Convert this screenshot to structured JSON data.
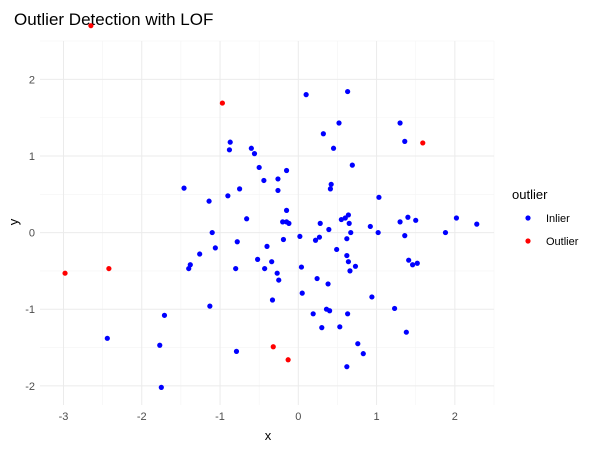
{
  "chart_data": {
    "type": "scatter",
    "title": "Outlier Detection with LOF",
    "xlabel": "x",
    "ylabel": "y",
    "xlim": [
      -3.3,
      2.5
    ],
    "ylim": [
      -2.25,
      2.5
    ],
    "xticks": [
      -3,
      -2,
      -1,
      0,
      1,
      2
    ],
    "yticks": [
      -2,
      -1,
      0,
      1,
      2
    ],
    "grid": true,
    "legend": {
      "title": "outlier",
      "position": "right"
    },
    "series": [
      {
        "name": "Inlier",
        "color": "#0000ff",
        "points": [
          [
            0.1,
            1.8
          ],
          [
            0.63,
            1.84
          ],
          [
            0.52,
            1.43
          ],
          [
            1.3,
            1.43
          ],
          [
            0.32,
            1.29
          ],
          [
            1.36,
            1.19
          ],
          [
            -0.87,
            1.18
          ],
          [
            -0.88,
            1.08
          ],
          [
            -0.6,
            1.1
          ],
          [
            -0.56,
            1.03
          ],
          [
            0.45,
            1.1
          ],
          [
            -0.5,
            0.85
          ],
          [
            -0.15,
            0.81
          ],
          [
            0.69,
            0.88
          ],
          [
            -0.26,
            0.7
          ],
          [
            -0.44,
            0.68
          ],
          [
            0.42,
            0.63
          ],
          [
            0.41,
            0.57
          ],
          [
            -0.26,
            0.55
          ],
          [
            -1.46,
            0.58
          ],
          [
            -0.75,
            0.57
          ],
          [
            -0.9,
            0.48
          ],
          [
            -1.14,
            0.41
          ],
          [
            1.03,
            0.46
          ],
          [
            -0.15,
            0.29
          ],
          [
            0.64,
            0.23
          ],
          [
            0.6,
            0.19
          ],
          [
            -0.66,
            0.18
          ],
          [
            0.55,
            0.17
          ],
          [
            1.4,
            0.2
          ],
          [
            1.5,
            0.16
          ],
          [
            1.3,
            0.14
          ],
          [
            2.02,
            0.19
          ],
          [
            2.28,
            0.11
          ],
          [
            0.92,
            0.08
          ],
          [
            -0.2,
            0.14
          ],
          [
            -0.12,
            0.12
          ],
          [
            -0.15,
            0.14
          ],
          [
            0.28,
            0.12
          ],
          [
            0.65,
            0.12
          ],
          [
            0.39,
            0.04
          ],
          [
            -1.1,
            0.0
          ],
          [
            0.67,
            0.0
          ],
          [
            1.02,
            0.0
          ],
          [
            1.36,
            -0.04
          ],
          [
            1.88,
            0.0
          ],
          [
            0.02,
            -0.05
          ],
          [
            -0.78,
            -0.12
          ],
          [
            0.27,
            -0.06
          ],
          [
            0.22,
            -0.1
          ],
          [
            -0.19,
            -0.09
          ],
          [
            0.62,
            -0.08
          ],
          [
            0.49,
            -0.22
          ],
          [
            -1.06,
            -0.2
          ],
          [
            -0.4,
            -0.18
          ],
          [
            -1.26,
            -0.28
          ],
          [
            0.62,
            -0.3
          ],
          [
            -0.52,
            -0.35
          ],
          [
            0.64,
            -0.38
          ],
          [
            1.41,
            -0.36
          ],
          [
            1.46,
            -0.42
          ],
          [
            1.52,
            -0.4
          ],
          [
            -0.34,
            -0.38
          ],
          [
            -1.38,
            -0.42
          ],
          [
            -1.4,
            -0.47
          ],
          [
            -0.43,
            -0.47
          ],
          [
            0.73,
            -0.44
          ],
          [
            0.66,
            -0.5
          ],
          [
            -0.8,
            -0.47
          ],
          [
            0.04,
            -0.45
          ],
          [
            -0.27,
            -0.53
          ],
          [
            0.24,
            -0.6
          ],
          [
            -0.25,
            -0.62
          ],
          [
            0.38,
            -0.67
          ],
          [
            0.05,
            -0.79
          ],
          [
            0.94,
            -0.84
          ],
          [
            -0.33,
            -0.88
          ],
          [
            -1.13,
            -0.96
          ],
          [
            1.23,
            -0.99
          ],
          [
            0.4,
            -1.02
          ],
          [
            0.36,
            -1.0
          ],
          [
            0.19,
            -1.06
          ],
          [
            0.63,
            -1.06
          ],
          [
            -1.71,
            -1.08
          ],
          [
            0.3,
            -1.24
          ],
          [
            0.53,
            -1.23
          ],
          [
            1.38,
            -1.3
          ],
          [
            -2.44,
            -1.38
          ],
          [
            0.76,
            -1.45
          ],
          [
            -1.77,
            -1.47
          ],
          [
            0.83,
            -1.58
          ],
          [
            -0.79,
            -1.55
          ],
          [
            0.62,
            -1.75
          ],
          [
            -1.75,
            -2.02
          ]
        ]
      },
      {
        "name": "Outlier",
        "color": "#ff0000",
        "points": [
          [
            -2.65,
            2.7
          ],
          [
            -0.97,
            1.69
          ],
          [
            1.59,
            1.17
          ],
          [
            -2.42,
            -0.47
          ],
          [
            -2.98,
            -0.53
          ],
          [
            -0.32,
            -1.49
          ],
          [
            -0.13,
            -1.66
          ]
        ]
      }
    ]
  }
}
